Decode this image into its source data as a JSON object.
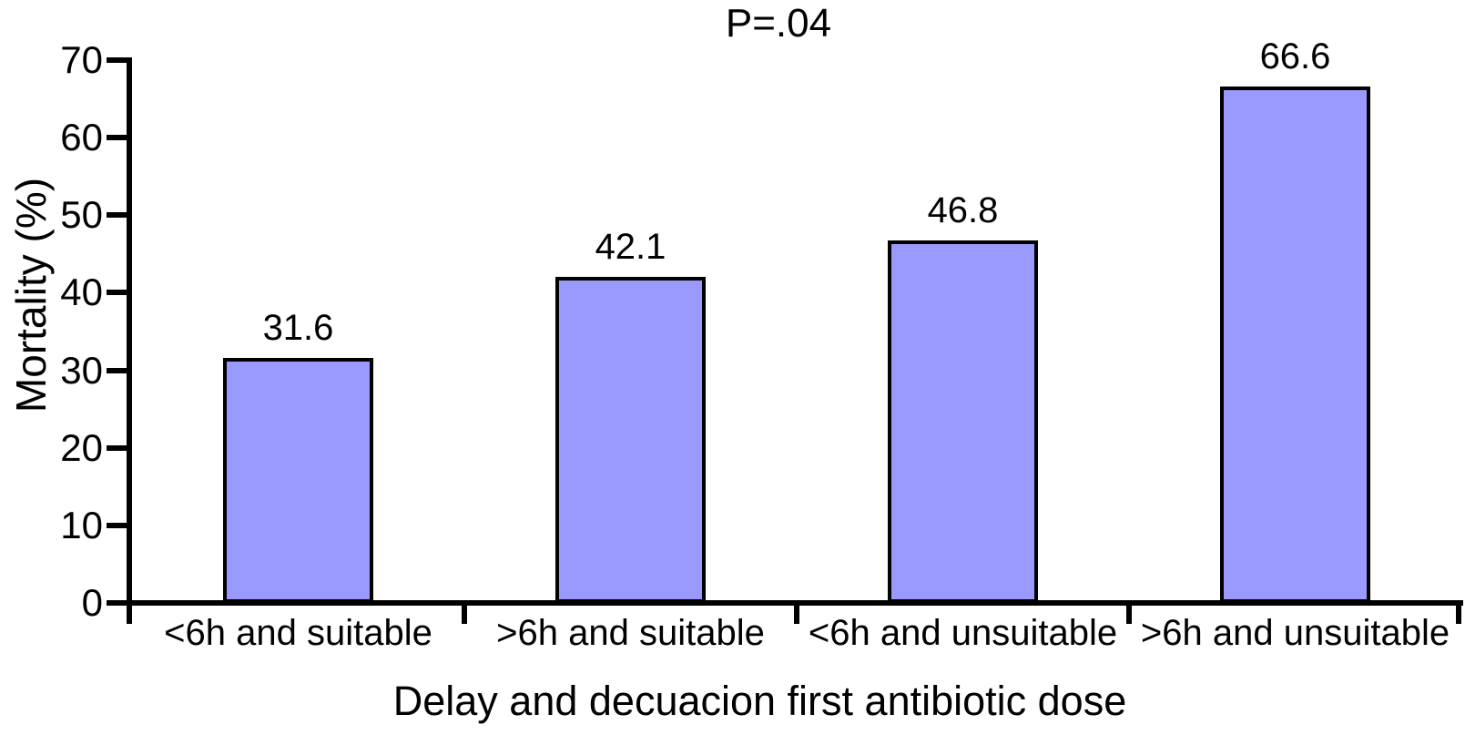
{
  "chart_data": {
    "type": "bar",
    "title": "P=.04",
    "xlabel": "Delay and decuacion first antibiotic dose",
    "ylabel": "Mortality (%)",
    "categories": [
      "<6h and suitable",
      ">6h and suitable",
      "<6h and unsuitable",
      ">6h and unsuitable"
    ],
    "values": [
      31.6,
      42.1,
      46.8,
      66.6
    ],
    "value_labels": [
      "31.6",
      "42.1",
      "46.8",
      "66.6"
    ],
    "ylim": [
      0,
      70
    ],
    "yticks": [
      0,
      10,
      20,
      30,
      40,
      50,
      60,
      70
    ],
    "bar_color": "#9a9afc",
    "bar_border_color": "#000000",
    "axis_color": "#000000",
    "grid": false,
    "legend": false,
    "bar_width_fraction": 0.45
  }
}
